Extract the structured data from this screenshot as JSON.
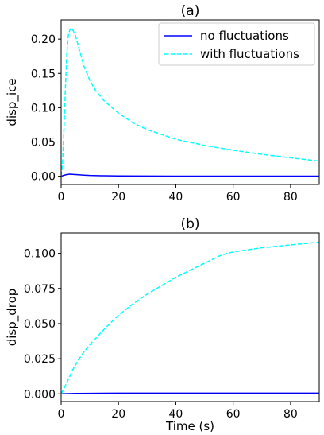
{
  "chart_data": [
    {
      "type": "line",
      "title": "(a)",
      "xlabel": "",
      "ylabel": "disp_ice",
      "xlim": [
        0,
        90
      ],
      "ylim": [
        -0.012,
        0.228
      ],
      "xticks": [
        0,
        20,
        40,
        60,
        80
      ],
      "yticks": [
        0.0,
        0.05,
        0.1,
        0.15,
        0.2
      ],
      "ytick_labels": [
        "0.00",
        "0.05",
        "0.10",
        "0.15",
        "0.20"
      ],
      "grid": false,
      "legend_position": "top-right",
      "series": [
        {
          "name": "no fluctuations",
          "color": "#0000ff",
          "style": "solid",
          "x": [
            0,
            1,
            2,
            3,
            4,
            6,
            8,
            10,
            15,
            20,
            30,
            40,
            60,
            90
          ],
          "y": [
            0.0,
            0.0015,
            0.0025,
            0.003,
            0.0028,
            0.0022,
            0.0016,
            0.0012,
            0.0007,
            0.0004,
            0.0003,
            0.0002,
            0.0002,
            0.0002
          ]
        },
        {
          "name": "with fluctuations",
          "color": "#00ffff",
          "style": "dashed",
          "x": [
            0,
            0.5,
            1,
            1.5,
            2,
            2.5,
            3,
            3.5,
            4,
            5,
            6,
            7,
            8,
            10,
            12,
            15,
            20,
            25,
            30,
            40,
            50,
            60,
            70,
            80,
            90
          ],
          "y": [
            0.0,
            0.02,
            0.07,
            0.13,
            0.18,
            0.205,
            0.213,
            0.216,
            0.214,
            0.205,
            0.19,
            0.175,
            0.16,
            0.14,
            0.125,
            0.11,
            0.092,
            0.078,
            0.068,
            0.054,
            0.045,
            0.038,
            0.032,
            0.027,
            0.022
          ]
        }
      ]
    },
    {
      "type": "line",
      "title": "(b)",
      "xlabel": "Time (s)",
      "ylabel": "disp_drop",
      "xlim": [
        0,
        90
      ],
      "ylim": [
        -0.0055,
        0.1145
      ],
      "xticks": [
        0,
        20,
        40,
        60,
        80
      ],
      "yticks": [
        0.0,
        0.025,
        0.05,
        0.075,
        0.1
      ],
      "ytick_labels": [
        "0.000",
        "0.025",
        "0.050",
        "0.075",
        "0.100"
      ],
      "grid": false,
      "series": [
        {
          "name": "no fluctuations",
          "color": "#0000ff",
          "style": "solid",
          "x": [
            0,
            5,
            10,
            20,
            40,
            60,
            90
          ],
          "y": [
            0.0,
            0.0003,
            0.0004,
            0.0005,
            0.0005,
            0.0005,
            0.0005
          ]
        },
        {
          "name": "with fluctuations",
          "color": "#00ffff",
          "style": "dashed",
          "x": [
            0,
            2,
            4,
            6,
            8,
            10,
            15,
            20,
            25,
            30,
            35,
            40,
            45,
            50,
            55,
            58,
            60,
            70,
            80,
            90
          ],
          "y": [
            0.0,
            0.008,
            0.017,
            0.024,
            0.03,
            0.035,
            0.046,
            0.056,
            0.064,
            0.071,
            0.077,
            0.083,
            0.088,
            0.093,
            0.098,
            0.1,
            0.101,
            0.104,
            0.106,
            0.108
          ]
        }
      ]
    }
  ]
}
